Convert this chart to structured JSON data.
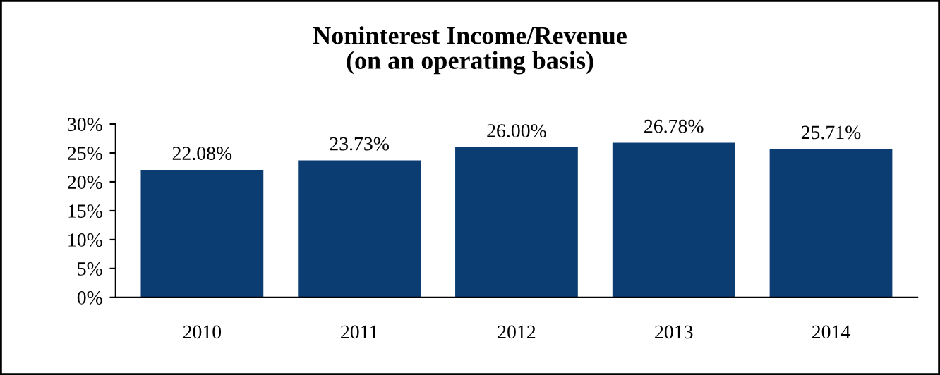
{
  "chart_data": {
    "type": "bar",
    "title": "Noninterest Income/Revenue\n(on an operating basis)",
    "categories": [
      "2010",
      "2011",
      "2012",
      "2013",
      "2014"
    ],
    "values": [
      22.08,
      23.73,
      26.0,
      26.78,
      25.71
    ],
    "value_labels": [
      "22.08%",
      "23.73%",
      "26.00%",
      "26.78%",
      "25.71%"
    ],
    "color": "#0b3d73",
    "ylim": [
      0,
      30
    ],
    "yticks": [
      {
        "value": 0,
        "label": "0%"
      },
      {
        "value": 5,
        "label": "5%"
      },
      {
        "value": 10,
        "label": "10%"
      },
      {
        "value": 15,
        "label": "15%"
      },
      {
        "value": 20,
        "label": "20%"
      },
      {
        "value": 25,
        "label": "25%"
      },
      {
        "value": 30,
        "label": "30%"
      }
    ],
    "grid": false,
    "legend": false
  }
}
